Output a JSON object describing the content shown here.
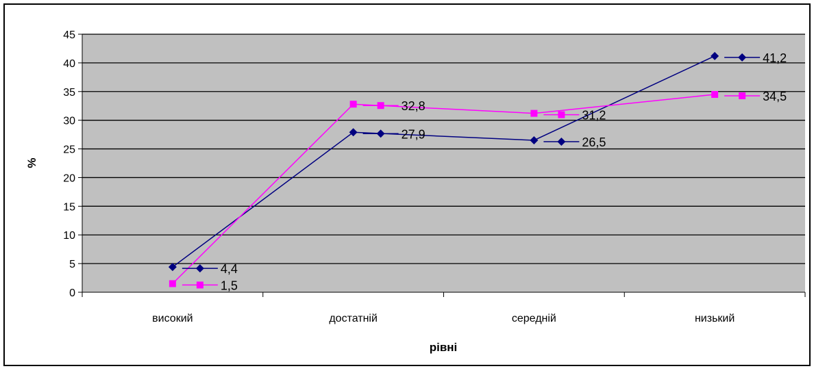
{
  "chart_data": {
    "type": "line",
    "title": "",
    "xlabel": "рівні",
    "ylabel": "%",
    "categories": [
      "високий",
      "достатній",
      "середній",
      "низький"
    ],
    "ylim": [
      0,
      45
    ],
    "yticks": [
      0,
      5,
      10,
      15,
      20,
      25,
      30,
      35,
      40,
      45
    ],
    "grid": true,
    "plot_background": "#c0c0c0",
    "series": [
      {
        "values": [
          4.4,
          27.9,
          26.5,
          41.2
        ],
        "labels": [
          "4,4",
          "27,9",
          "26,5",
          "41,2"
        ],
        "color": "#000080",
        "marker": "diamond"
      },
      {
        "values": [
          1.5,
          32.8,
          31.2,
          34.5
        ],
        "labels": [
          "1,5",
          "32,8",
          "31,2",
          "34,5"
        ],
        "color": "#ff00ff",
        "marker": "square"
      }
    ]
  }
}
